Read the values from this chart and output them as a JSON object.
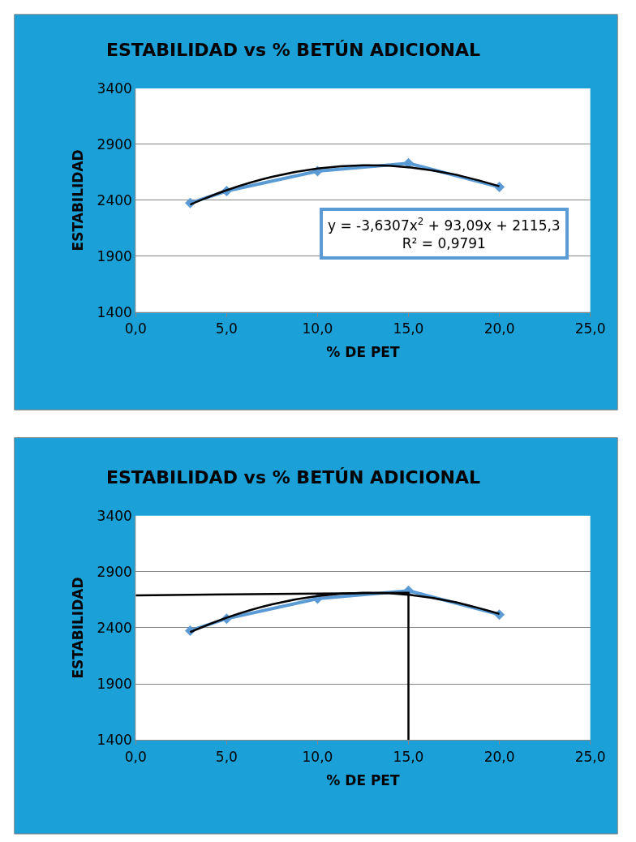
{
  "chart_data": [
    {
      "type": "line",
      "title": "ESTABILIDAD vs % BETÚN ADICIONAL",
      "xlabel": "% DE PET",
      "ylabel": "ESTABILIDAD",
      "xlim": [
        0,
        25
      ],
      "xticks": [
        {
          "value": 0,
          "label": "0,0"
        },
        {
          "value": 5,
          "label": "5,0"
        },
        {
          "value": 10,
          "label": "10,0"
        },
        {
          "value": 15,
          "label": "15,0"
        },
        {
          "value": 20,
          "label": "20,0"
        },
        {
          "value": 25,
          "label": "25,0"
        }
      ],
      "ylim": [
        1400,
        3400
      ],
      "yticks": [
        1400,
        1900,
        2400,
        2900,
        3400
      ],
      "grid": "y",
      "series": [
        {
          "color": "#5b9bd5",
          "marker": "diamond",
          "x": [
            3,
            5,
            10,
            15,
            20
          ],
          "values": [
            2375,
            2482,
            2660,
            2731,
            2518
          ]
        },
        {
          "color": "#000000",
          "marker": "none",
          "x": [
            3,
            5,
            7.5,
            10,
            12.5,
            15,
            17.5,
            20
          ],
          "values": [
            2362,
            2490,
            2609,
            2683,
            2712,
            2695,
            2632,
            2525
          ]
        }
      ],
      "annotations": [
        "y = -3,6307x$^{2}$ + 93,09x + 2115,3\nR² = 0,9791"
      ]
    },
    {
      "type": "line",
      "title": "ESTABILIDAD vs % BETÚN ADICIONAL",
      "xlabel": "% DE PET",
      "ylabel": "ESTABILIDAD",
      "xlim": [
        0,
        25
      ],
      "xticks": [
        {
          "value": 0,
          "label": "0,0"
        },
        {
          "value": 5,
          "label": "5,0"
        },
        {
          "value": 10,
          "label": "10,0"
        },
        {
          "value": 15,
          "label": "15,0"
        },
        {
          "value": 20,
          "label": "20,0"
        },
        {
          "value": 25,
          "label": "25,0"
        }
      ],
      "ylim": [
        1400,
        3400
      ],
      "yticks": [
        1400,
        1900,
        2400,
        2900,
        3400
      ],
      "grid": "y",
      "series": [
        {
          "color": "#5b9bd5",
          "marker": "diamond",
          "x": [
            3,
            5,
            10,
            15,
            20
          ],
          "values": [
            2375,
            2482,
            2660,
            2731,
            2518
          ]
        },
        {
          "color": "#000000",
          "marker": "none",
          "x": [
            3,
            5,
            7.5,
            10,
            12.5,
            15,
            17.5,
            20
          ],
          "values": [
            2362,
            2490,
            2609,
            2683,
            2712,
            2695,
            2632,
            2525
          ]
        },
        {
          "color": "#000000",
          "marker": "none",
          "x": [
            0,
            15,
            15
          ],
          "values": [
            2690,
            2712,
            1400
          ]
        }
      ]
    }
  ]
}
